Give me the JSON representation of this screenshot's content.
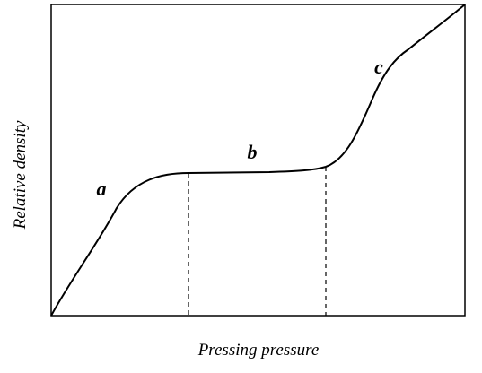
{
  "axes": {
    "x_label": "Pressing pressure",
    "y_label": "Relative density"
  },
  "regions": [
    {
      "label": "a"
    },
    {
      "label": "b"
    },
    {
      "label": "c"
    }
  ]
}
